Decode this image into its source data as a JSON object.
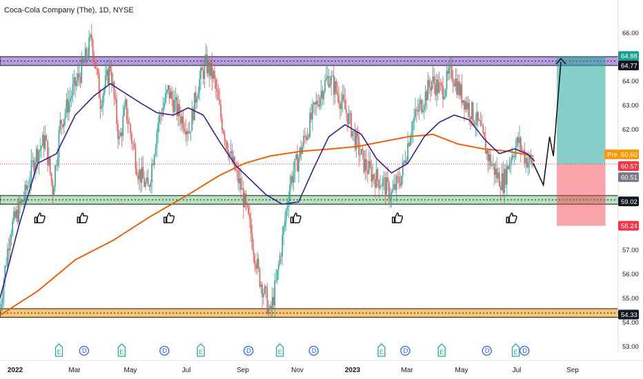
{
  "header": {
    "title": "Coca-Cola Company (The), 1D, NYSE"
  },
  "chart_data": {
    "type": "candlestick",
    "symbol": "Coca-Cola Company (The)",
    "interval": "1D",
    "exchange": "NYSE",
    "ylim": [
      52.8,
      66.8
    ],
    "y_ticks": [
      "66.00",
      "64.00",
      "63.00",
      "62.00",
      "58.00",
      "57.00",
      "56.00",
      "55.00",
      "54.00",
      "53.00"
    ],
    "x_ticks": [
      {
        "label": "2022",
        "bold": true,
        "x": 0.0
      },
      {
        "label": "Mar",
        "bold": false,
        "x": 41
      },
      {
        "label": "May",
        "bold": false,
        "x": 102
      },
      {
        "label": "Jul",
        "bold": false,
        "x": 163
      },
      {
        "label": "Sep",
        "bold": false,
        "x": 225
      },
      {
        "label": "Nov",
        "bold": false,
        "x": 286
      },
      {
        "label": "2023",
        "bold": true,
        "x": 347
      },
      {
        "label": "Mar",
        "bold": false,
        "x": 406
      },
      {
        "label": "May",
        "bold": false,
        "x": 467
      },
      {
        "label": "Jul",
        "bold": false,
        "x": 528
      },
      {
        "label": "Sep",
        "bold": false,
        "x": 590
      }
    ],
    "price_anchors": [
      [
        0,
        54.6
      ],
      [
        8,
        57.8
      ],
      [
        20,
        59.3
      ],
      [
        28,
        60.9
      ],
      [
        36,
        61.6
      ],
      [
        42,
        59.5
      ],
      [
        48,
        62.2
      ],
      [
        58,
        63.6
      ],
      [
        66,
        64.6
      ],
      [
        73,
        65.8
      ],
      [
        80,
        63.2
      ],
      [
        88,
        64.6
      ],
      [
        95,
        61.5
      ],
      [
        100,
        62.9
      ],
      [
        110,
        60.3
      ],
      [
        118,
        59.5
      ],
      [
        126,
        62.3
      ],
      [
        134,
        63.6
      ],
      [
        142,
        62.7
      ],
      [
        151,
        62.0
      ],
      [
        158,
        63.9
      ],
      [
        164,
        64.7
      ],
      [
        170,
        64.2
      ],
      [
        176,
        62.5
      ],
      [
        184,
        60.8
      ],
      [
        192,
        59.6
      ],
      [
        199,
        58.0
      ],
      [
        206,
        56.0
      ],
      [
        212,
        55.0
      ],
      [
        215,
        54.3
      ],
      [
        220,
        55.6
      ],
      [
        226,
        57.8
      ],
      [
        231,
        59.8
      ],
      [
        237,
        60.7
      ],
      [
        242,
        61.5
      ],
      [
        249,
        62.6
      ],
      [
        256,
        63.6
      ],
      [
        262,
        64.2
      ],
      [
        270,
        63.4
      ],
      [
        277,
        62.6
      ],
      [
        283,
        61.6
      ],
      [
        290,
        60.6
      ],
      [
        297,
        60.1
      ],
      [
        305,
        59.8
      ],
      [
        312,
        59.3
      ],
      [
        320,
        60.1
      ],
      [
        328,
        62.2
      ],
      [
        336,
        63.1
      ],
      [
        344,
        64.0
      ],
      [
        352,
        63.6
      ],
      [
        360,
        64.4
      ],
      [
        367,
        63.5
      ],
      [
        375,
        62.8
      ],
      [
        382,
        62.1
      ],
      [
        389,
        60.9
      ],
      [
        396,
        60.1
      ],
      [
        401,
        59.8
      ],
      [
        407,
        60.9
      ],
      [
        413,
        61.5
      ],
      [
        419,
        60.8
      ],
      [
        425,
        60.57
      ]
    ],
    "rsi_like_ma_note": "purple moving average",
    "purple_ma": [
      [
        0,
        55.0
      ],
      [
        15,
        58.0
      ],
      [
        30,
        60.6
      ],
      [
        45,
        61.0
      ],
      [
        60,
        62.6
      ],
      [
        75,
        63.4
      ],
      [
        88,
        63.9
      ],
      [
        100,
        63.5
      ],
      [
        112,
        63.1
      ],
      [
        125,
        62.7
      ],
      [
        138,
        62.6
      ],
      [
        150,
        62.9
      ],
      [
        162,
        62.6
      ],
      [
        175,
        61.5
      ],
      [
        188,
        60.5
      ],
      [
        200,
        59.9
      ],
      [
        212,
        59.3
      ],
      [
        225,
        58.9
      ],
      [
        238,
        59.0
      ],
      [
        250,
        60.4
      ],
      [
        262,
        61.7
      ],
      [
        275,
        62.2
      ],
      [
        288,
        61.8
      ],
      [
        300,
        60.8
      ],
      [
        312,
        60.2
      ],
      [
        325,
        60.6
      ],
      [
        338,
        61.7
      ],
      [
        350,
        62.3
      ],
      [
        362,
        62.6
      ],
      [
        374,
        62.4
      ],
      [
        386,
        61.6
      ],
      [
        398,
        61.0
      ],
      [
        410,
        61.2
      ],
      [
        420,
        61.0
      ],
      [
        426,
        60.7
      ]
    ],
    "orange_ma": [
      [
        0,
        54.3
      ],
      [
        30,
        55.3
      ],
      [
        60,
        56.6
      ],
      [
        90,
        57.4
      ],
      [
        120,
        58.4
      ],
      [
        150,
        59.3
      ],
      [
        175,
        60.1
      ],
      [
        195,
        60.6
      ],
      [
        215,
        60.9
      ],
      [
        240,
        61.1
      ],
      [
        265,
        61.2
      ],
      [
        285,
        61.3
      ],
      [
        305,
        61.5
      ],
      [
        325,
        61.7
      ],
      [
        345,
        61.8
      ],
      [
        365,
        61.4
      ],
      [
        385,
        61.2
      ],
      [
        405,
        61.1
      ],
      [
        425,
        60.9
      ]
    ],
    "resistance_zone": {
      "top": 64.88,
      "bottom": 64.77,
      "color": "#9c7bd1"
    },
    "support_zone": {
      "top": 59.12,
      "bottom": 59.02,
      "color": "#7bc98a"
    },
    "bottom_zone": {
      "top": 54.43,
      "bottom": 54.33,
      "color": "#f7b24a"
    },
    "projection_path": [
      [
        425,
        60.6
      ],
      [
        433,
        59.7
      ],
      [
        438,
        61.7
      ],
      [
        441,
        60.9
      ],
      [
        447,
        64.8
      ]
    ],
    "position": {
      "x_from": 441,
      "x_to": 466,
      "target": 64.88,
      "entry": 60.57,
      "stop": 58.24,
      "profit_color": "#7fd1bf",
      "loss_color": "#f7a3a8"
    },
    "price_labels": [
      {
        "value": 64.88,
        "text": "64.88",
        "bg": "#1a9e8f",
        "fg": "#ffffff"
      },
      {
        "value": 64.77,
        "text": "64.77",
        "bg": "#131722",
        "fg": "#ffffff"
      },
      {
        "value": 60.6,
        "text": "60.60",
        "bg": "#ff9800",
        "fg": "#ffffff",
        "prefix": "Pre"
      },
      {
        "value": 60.57,
        "text": "60.57",
        "bg": "#f23645",
        "fg": "#ffffff"
      },
      {
        "value": 60.51,
        "text": "60.51",
        "bg": "#787b86",
        "fg": "#ffffff"
      },
      {
        "value": 59.02,
        "text": "59.02",
        "bg": "#131722",
        "fg": "#ffffff"
      },
      {
        "value": 58.24,
        "text": "58.24",
        "bg": "#f23645",
        "fg": "#ffffff"
      },
      {
        "value": 54.33,
        "text": "54.33",
        "bg": "#131722",
        "fg": "#ffffff"
      }
    ],
    "thumbs_up_markers": [
      31,
      65,
      134,
      235,
      316,
      407
    ],
    "events": [
      {
        "type": "E",
        "x": 47
      },
      {
        "type": "D",
        "x": 67
      },
      {
        "type": "E",
        "x": 97
      },
      {
        "type": "D",
        "x": 131
      },
      {
        "type": "E",
        "x": 160
      },
      {
        "type": "D",
        "x": 198
      },
      {
        "type": "E",
        "x": 223
      },
      {
        "type": "D",
        "x": 250
      },
      {
        "type": "E",
        "x": 304
      },
      {
        "type": "D",
        "x": 323
      },
      {
        "type": "E",
        "x": 352
      },
      {
        "type": "D",
        "x": 388
      },
      {
        "type": "E",
        "x": 411
      },
      {
        "type": "D",
        "x": 415
      }
    ],
    "colors": {
      "up": "#26a69a",
      "down": "#ef5350",
      "purple_ma": "#3f1b8c",
      "orange_ma": "#e8620c",
      "price_line": "#f23645"
    }
  }
}
